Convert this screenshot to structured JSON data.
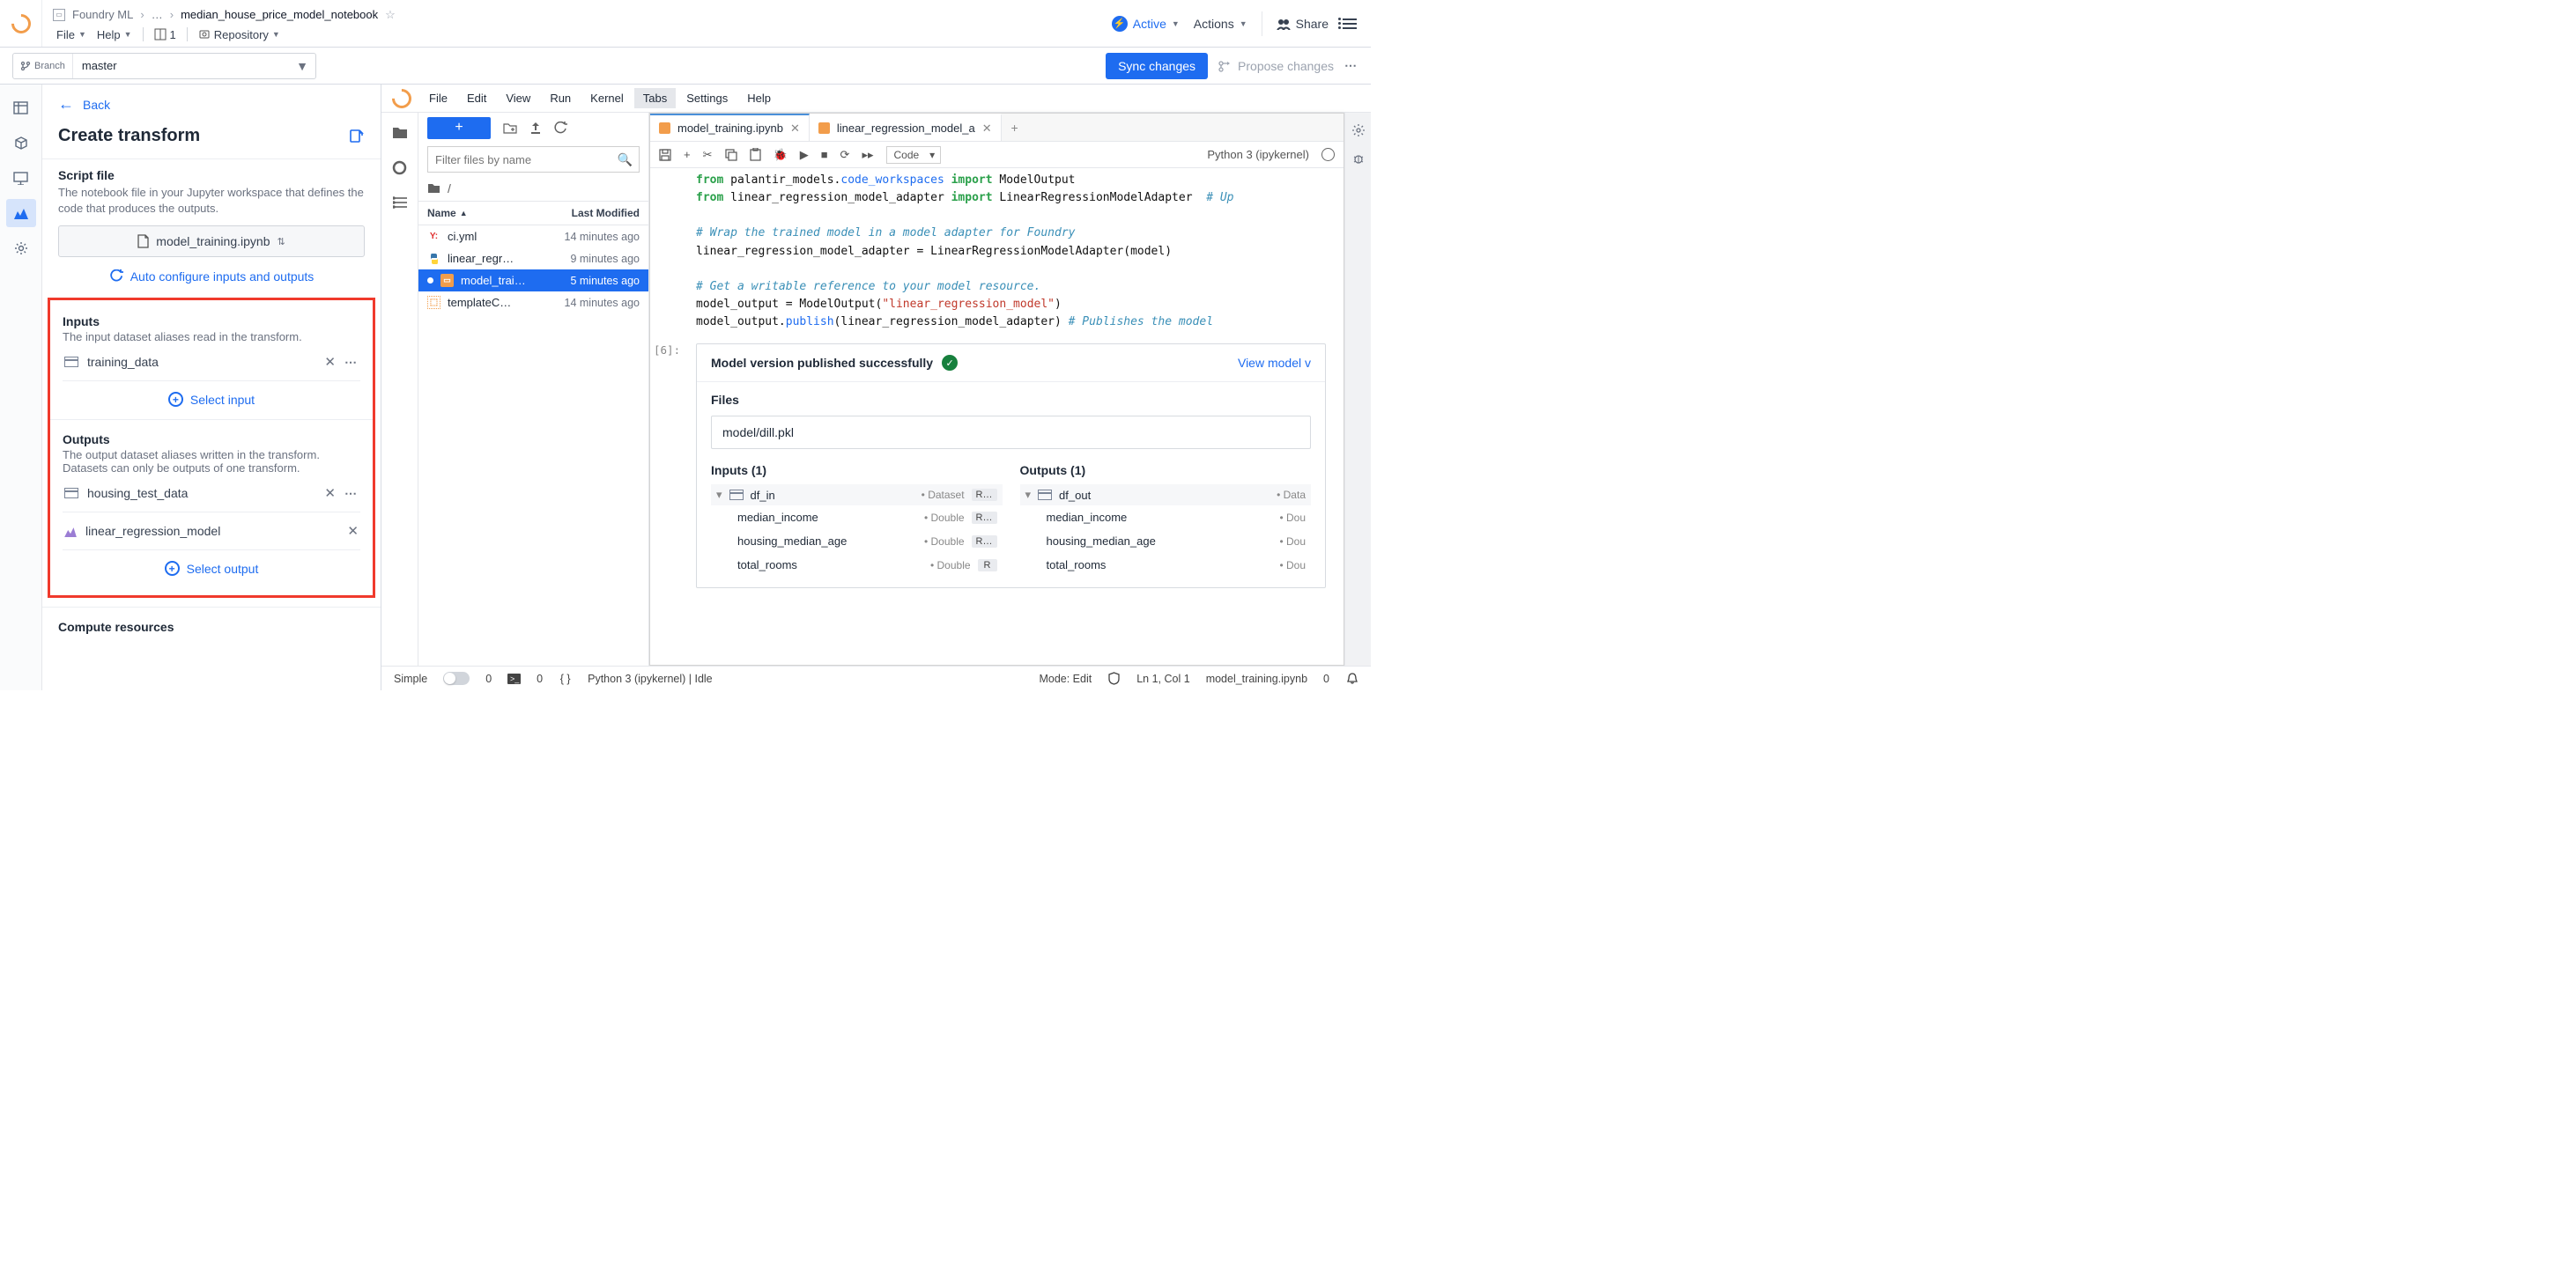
{
  "breadcrumb": {
    "root": "Foundry ML",
    "ellipsis": "…",
    "current": "median_house_price_model_notebook"
  },
  "top_menu": {
    "file": "File",
    "help": "Help",
    "tabs_count": "1",
    "repo": "Repository"
  },
  "top_right": {
    "active": "Active",
    "actions": "Actions",
    "share": "Share"
  },
  "branch": {
    "label": "Branch",
    "value": "master"
  },
  "subbar": {
    "sync": "Sync changes",
    "propose": "Propose changes"
  },
  "left": {
    "back": "Back",
    "title": "Create transform",
    "script": {
      "heading": "Script file",
      "desc": "The notebook file in your Jupyter workspace that defines the code that produces the outputs.",
      "file": "model_training.ipynb",
      "auto": "Auto configure inputs and outputs"
    },
    "inputs": {
      "heading": "Inputs",
      "desc": "The input dataset aliases read in the transform.",
      "item1": "training_data",
      "select": "Select input"
    },
    "outputs": {
      "heading": "Outputs",
      "desc": "The output dataset aliases written in the transform. Datasets can only be outputs of one transform.",
      "item1": "housing_test_data",
      "item2": "linear_regression_model",
      "select": "Select output"
    },
    "compute": {
      "heading": "Compute resources"
    }
  },
  "jup_menu": {
    "file": "File",
    "edit": "Edit",
    "view": "View",
    "run": "Run",
    "kernel": "Kernel",
    "tabs": "Tabs",
    "settings": "Settings",
    "help": "Help"
  },
  "fb": {
    "filter_placeholder": "Filter files by name",
    "path": "/",
    "col_name": "Name",
    "col_mod": "Last Modified",
    "files": [
      {
        "icon": "y",
        "name": "ci.yml",
        "time": "14 minutes ago",
        "sel": false
      },
      {
        "icon": "py",
        "name": "linear_regr…",
        "time": "9 minutes ago",
        "sel": false
      },
      {
        "icon": "nb",
        "name": "model_trai…",
        "time": "5 minutes ago",
        "sel": true
      },
      {
        "icon": "tc",
        "name": "templateC…",
        "time": "14 minutes ago",
        "sel": false
      }
    ]
  },
  "tabs": {
    "t1": "model_training.ipynb",
    "t2": "linear_regression_model_a"
  },
  "toolbar": {
    "code": "Code",
    "kernel": "Python 3 (ipykernel)"
  },
  "code": {
    "l1a": "from",
    "l1b": " palantir_models.",
    "l1c": "code_workspaces ",
    "l1d": "import",
    "l1e": " ModelOutput",
    "l2a": "from",
    "l2b": " linear_regression_model_adapter ",
    "l2c": "import",
    "l2d": " LinearRegressionModelAdapter  ",
    "l2e": "# Up",
    "c1": "# Wrap the trained model in a model adapter for Foundry",
    "l3": "linear_regression_model_adapter = LinearRegressionModelAdapter(model)",
    "c2": "# Get a writable reference to your model resource.",
    "l4a": "model_output = ModelOutput(",
    "l4b": "\"linear_regression_model\"",
    "l4c": ")",
    "l5a": "model_output.",
    "l5b": "publish",
    "l5c": "(linear_regression_model_adapter) ",
    "l5d": "# Publishes the model "
  },
  "prompt6": "[6]:",
  "out": {
    "title": "Model version published successfully",
    "link": "View model v",
    "files": "Files",
    "file": "model/dill.pkl",
    "inputs": "Inputs (1)",
    "outputs": "Outputs (1)",
    "df_in": "df_in",
    "df_out": "df_out",
    "dataset": "Dataset",
    "r": "R…",
    "data": "Data",
    "f1": "median_income",
    "f2": "housing_median_age",
    "f3": "total_rooms",
    "double": "Double",
    "dou": "Dou"
  },
  "status": {
    "simple": "Simple",
    "z1": "0",
    "z2": "0",
    "kernel": "Python 3 (ipykernel) | Idle",
    "mode": "Mode: Edit",
    "ln": "Ln 1, Col 1",
    "file": "model_training.ipynb",
    "zero": "0"
  }
}
